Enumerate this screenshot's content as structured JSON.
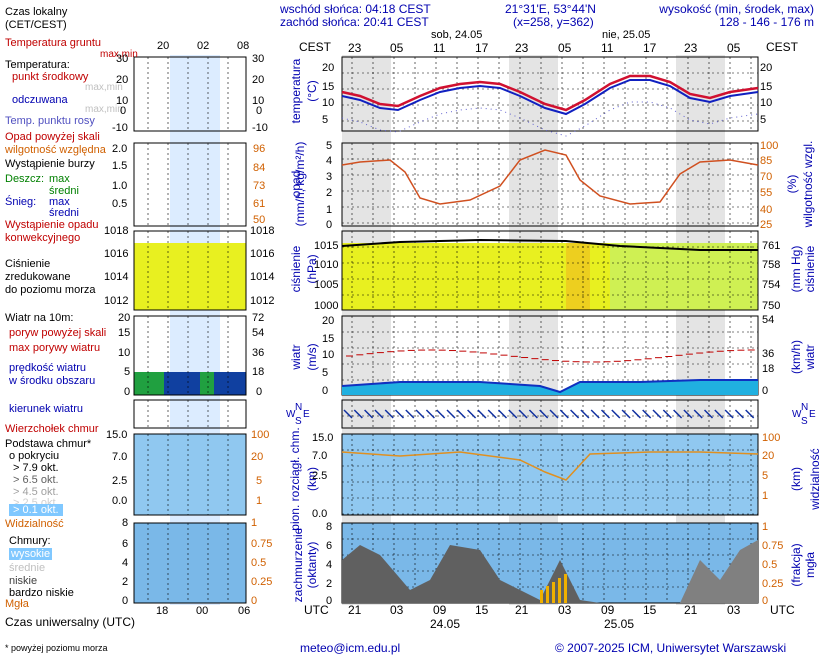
{
  "header": {
    "sunrise": "wschód słońca: 04:18 CEST",
    "sunset": "zachód słońca: 20:41 CEST",
    "coords": "21°31'E, 53°44'N",
    "grid": "(x=258, y=362)",
    "elevation_title": "wysokość (min, środek, max)",
    "elevation_values": "128 - 146 - 176 m"
  },
  "left_panel": {
    "czas_lokalny": "Czas lokalny",
    "cet_cest": "(CET/CEST)",
    "top_hours": [
      "20",
      "02",
      "08"
    ],
    "temperatura_gruntu": "Temperatura gruntu",
    "max_min_top": "max,min",
    "temperatura": "Temperatura:",
    "punkt_srodkowy": "punkt środkowy",
    "max_min_faded": "max,min",
    "odczuwana": "odczuwana",
    "max_min_faded2": "max,min",
    "temp_punktu_rosy": "Temp. punktu rosy",
    "temp_ticks": [
      "30",
      "20",
      "10",
      "0",
      "-10"
    ],
    "opad_powyzej_skali": "Opad powyżej skali",
    "wilgotnosc": "wilgotność względna",
    "wystapienie_burzy": "Wystąpienie burzy",
    "deszcz": "Deszcz:",
    "deszcz_max": "max",
    "deszcz_sredni": "średni",
    "snieg": "Śnieg:",
    "snieg_max": "max",
    "snieg_sredni": "średni",
    "wystapienie_opadu": "Wystąpienie opadu",
    "konwekcyjnego": "konwekcyjnego",
    "precip_ticks": [
      "2.0",
      "1.5",
      "1.0",
      "0.5"
    ],
    "hum_ticks": [
      "96",
      "84",
      "73",
      "61",
      "50"
    ],
    "cisnienie": "Ciśnienie",
    "zredukowane": "zredukowane",
    "do_poziomu": "do poziomu morza",
    "press_ticks_l": [
      "1018",
      "1016",
      "1014",
      "1012"
    ],
    "press_ticks_r": [
      "1018",
      "1016",
      "1014",
      "1012"
    ],
    "wiatr_10m": "Wiatr na 10m:",
    "poryw_powyzej": "poryw powyżej skali",
    "max_porywy": "max porywy wiatru",
    "predkosc_wiatru": "prędkość wiatru",
    "w_srodku": "w środku obszaru",
    "wind_ticks_l": [
      "20",
      "15",
      "10",
      "5",
      "0"
    ],
    "wind_ticks_r": [
      "72",
      "54",
      "36",
      "18",
      "0"
    ],
    "kierunek_wiatru": "kierunek wiatru",
    "wierzcholek": "Wierzchołek chmur",
    "podstawa": "Podstawa chmur*",
    "o_pokryciu": "o pokryciu",
    "okt_79": "> 7.9 okt.",
    "okt_65": "> 6.5 okt.",
    "okt_45": "> 4.5 okt.",
    "okt_25": "> 2.5 okt.",
    "okt_01": "> 0.1 okt.",
    "widzialnosc": "Widzialność",
    "cloud_ticks_l": [
      "15.0",
      "7.0",
      "2.5",
      "0.0"
    ],
    "cloud_ticks_r": [
      "100",
      "20",
      "5",
      "1"
    ],
    "chmury": "Chmury:",
    "wysokie": "wysokie",
    "srednie": "średnie",
    "niskie": "niskie",
    "bardzo_niskie": "bardzo niskie",
    "mgla": "Mgła",
    "cc_ticks_l": [
      "8",
      "6",
      "4",
      "2",
      "0"
    ],
    "cc_ticks_r": [
      "1",
      "0.75",
      "0.5",
      "0.25",
      "0"
    ],
    "bottom_hours": [
      "18",
      "00",
      "06"
    ],
    "czas_uniwersalny": "Czas uniwersalny (UTC)",
    "footnote": "* powyżej poziomu morza"
  },
  "main": {
    "cest": "CEST",
    "utc": "UTC",
    "day1": "sob, 24.05",
    "day2": "nie, 25.05",
    "top_hours": [
      "23",
      "05",
      "11",
      "17",
      "23",
      "05",
      "11",
      "17",
      "23",
      "05"
    ],
    "bottom_hours": [
      "21",
      "03",
      "09",
      "15",
      "21",
      "03",
      "09",
      "15",
      "21",
      "03"
    ],
    "bottom_day1": "24.05",
    "bottom_day2": "25.05",
    "temp_label": "temperatura",
    "temp_unit": "(°C)",
    "temp_ticks": [
      "20",
      "15",
      "10",
      "5"
    ],
    "opad_label": "opad",
    "opad_unit": "(mm/h, kg/m²/h)",
    "opad_ticks": [
      "5",
      "4",
      "3",
      "2",
      "1",
      "0"
    ],
    "wilg_label": "wilgotność wzgl.",
    "wilg_unit": "(%)",
    "wilg_ticks": [
      "100",
      "85",
      "70",
      "55",
      "40",
      "25"
    ],
    "cisn_label": "ciśnienie",
    "cisn_unit": "(hPa)",
    "cisn_ticks_l": [
      "1015",
      "1010",
      "1005",
      "1000"
    ],
    "cisn_unit_r": "(mm Hg)",
    "cisn_ticks_r": [
      "761",
      "758",
      "754",
      "750"
    ],
    "wiatr_label": "wiatr",
    "wiatr_unit": "(m/s)",
    "wiatr_unit_r": "(km/h)",
    "wiatr_ticks_l": [
      "20",
      "15",
      "10",
      "5",
      "0"
    ],
    "wiatr_ticks_r": [
      "54",
      "36",
      "18",
      "0"
    ],
    "compass": [
      "N",
      "W",
      "E",
      "S"
    ],
    "chm_label": "pion. rozciągł. chm.",
    "chm_unit": "(km)",
    "chm_ticks": [
      "15.0",
      "7.0",
      "2.5",
      "0.0"
    ],
    "widz_label": "widzialność",
    "widz_unit": "(km)",
    "widz_ticks": [
      "100",
      "20",
      "5",
      "1"
    ],
    "zach_label": "zachmurzenie",
    "zach_unit": "(oktanty)",
    "zach_ticks": [
      "8",
      "6",
      "4",
      "2",
      "0"
    ],
    "mgla_label": "mgła",
    "mgla_unit": "(frakcja)",
    "mgla_ticks": [
      "1",
      "0.75",
      "0.5",
      "0.25",
      "0"
    ]
  },
  "footer": {
    "email": "meteo@icm.edu.pl",
    "copyright": "© 2007-2025 ICM, Uniwersytet Warszawski"
  }
}
